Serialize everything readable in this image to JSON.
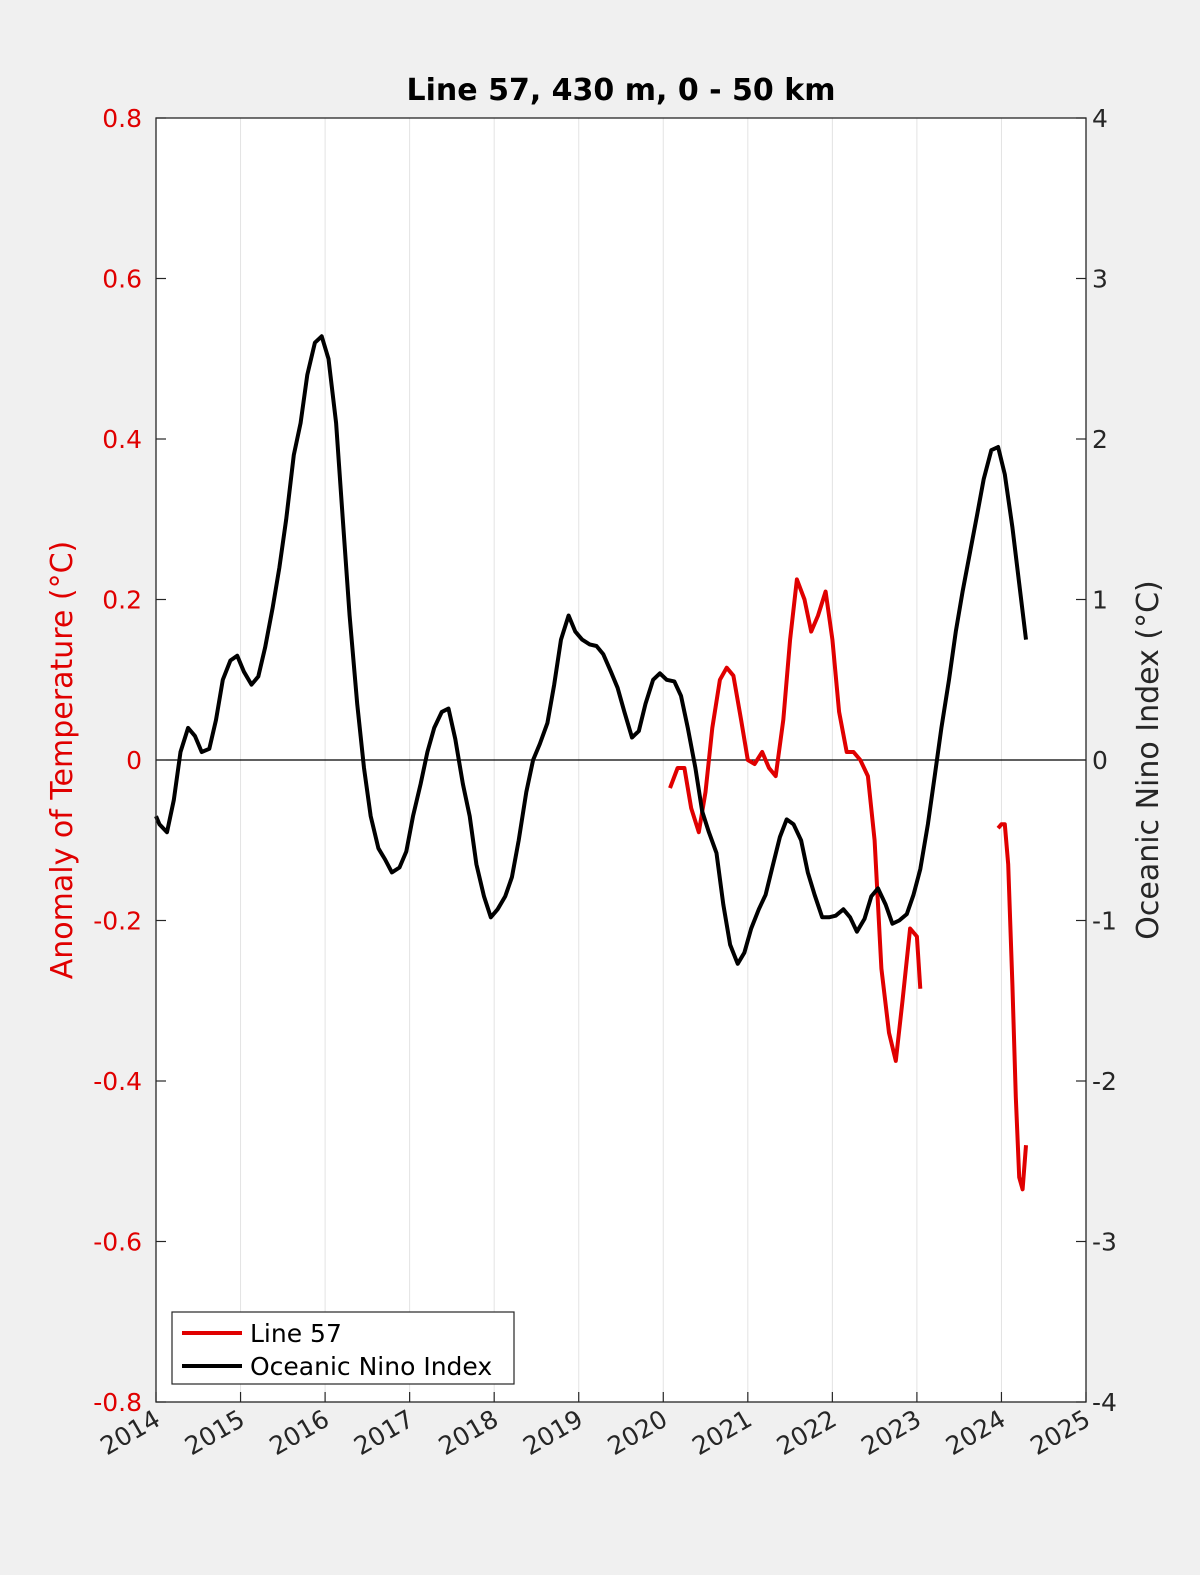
{
  "chart_data": {
    "type": "line",
    "title": "Line 57, 430 m, 0 - 50 km",
    "xlabel": "",
    "ylabel_left": "Anomaly of Temperature (°C)",
    "ylabel_right": "Oceanic Nino Index (°C)",
    "xlim": [
      2014,
      2025
    ],
    "ylim_left": [
      -0.8,
      0.8
    ],
    "ylim_right": [
      -4,
      4
    ],
    "x_ticks": [
      "2014",
      "2015",
      "2016",
      "2017",
      "2018",
      "2019",
      "2020",
      "2021",
      "2022",
      "2023",
      "2024",
      "2025"
    ],
    "y_ticks_left": [
      "-0.8",
      "-0.6",
      "-0.4",
      "-0.2",
      "0",
      "0.2",
      "0.4",
      "0.6",
      "0.8"
    ],
    "y_ticks_right": [
      "-4",
      "-3",
      "-2",
      "-1",
      "0",
      "1",
      "2",
      "3",
      "4"
    ],
    "grid": "vertical",
    "zero_line": true,
    "legend_position": "bottom-left",
    "series": [
      {
        "name": "Line 57",
        "axis": "left",
        "color": "#e00000",
        "segments": [
          [
            [
              2020.08,
              -0.035
            ],
            [
              2020.17,
              -0.01
            ],
            [
              2020.25,
              -0.01
            ],
            [
              2020.33,
              -0.06
            ],
            [
              2020.42,
              -0.09
            ],
            [
              2020.5,
              -0.04
            ],
            [
              2020.58,
              0.04
            ],
            [
              2020.67,
              0.1
            ],
            [
              2020.75,
              0.115
            ],
            [
              2020.83,
              0.105
            ],
            [
              2020.92,
              0.05
            ],
            [
              2021.0,
              0.0
            ],
            [
              2021.08,
              -0.005
            ],
            [
              2021.17,
              0.01
            ],
            [
              2021.25,
              -0.01
            ],
            [
              2021.33,
              -0.02
            ],
            [
              2021.42,
              0.05
            ],
            [
              2021.5,
              0.15
            ],
            [
              2021.58,
              0.225
            ],
            [
              2021.67,
              0.2
            ],
            [
              2021.75,
              0.16
            ],
            [
              2021.83,
              0.18
            ],
            [
              2021.92,
              0.21
            ],
            [
              2022.0,
              0.15
            ],
            [
              2022.08,
              0.06
            ],
            [
              2022.17,
              0.01
            ],
            [
              2022.25,
              0.01
            ],
            [
              2022.33,
              0.0
            ],
            [
              2022.42,
              -0.02
            ],
            [
              2022.5,
              -0.1
            ],
            [
              2022.58,
              -0.26
            ],
            [
              2022.67,
              -0.34
            ],
            [
              2022.75,
              -0.375
            ],
            [
              2022.83,
              -0.3
            ],
            [
              2022.92,
              -0.21
            ],
            [
              2023.0,
              -0.22
            ],
            [
              2023.04,
              -0.285
            ]
          ],
          [
            [
              2023.96,
              -0.085
            ],
            [
              2024.0,
              -0.08
            ],
            [
              2024.04,
              -0.08
            ],
            [
              2024.08,
              -0.13
            ],
            [
              2024.13,
              -0.28
            ],
            [
              2024.17,
              -0.42
            ],
            [
              2024.21,
              -0.52
            ],
            [
              2024.25,
              -0.535
            ],
            [
              2024.29,
              -0.48
            ]
          ]
        ]
      },
      {
        "name": "Oceanic Nino Index",
        "axis": "right",
        "color": "#000000",
        "segments": [
          [
            [
              2014.0,
              -0.35
            ],
            [
              2014.04,
              -0.4
            ],
            [
              2014.13,
              -0.45
            ],
            [
              2014.21,
              -0.25
            ],
            [
              2014.29,
              0.05
            ],
            [
              2014.38,
              0.2
            ],
            [
              2014.46,
              0.15
            ],
            [
              2014.54,
              0.05
            ],
            [
              2014.63,
              0.07
            ],
            [
              2014.71,
              0.25
            ],
            [
              2014.79,
              0.5
            ],
            [
              2014.88,
              0.62
            ],
            [
              2014.96,
              0.65
            ],
            [
              2015.04,
              0.55
            ],
            [
              2015.13,
              0.47
            ],
            [
              2015.21,
              0.52
            ],
            [
              2015.29,
              0.7
            ],
            [
              2015.38,
              0.95
            ],
            [
              2015.46,
              1.2
            ],
            [
              2015.54,
              1.5
            ],
            [
              2015.63,
              1.9
            ],
            [
              2015.71,
              2.1
            ],
            [
              2015.79,
              2.4
            ],
            [
              2015.88,
              2.6
            ],
            [
              2015.96,
              2.64
            ],
            [
              2016.04,
              2.5
            ],
            [
              2016.13,
              2.1
            ],
            [
              2016.21,
              1.5
            ],
            [
              2016.29,
              0.9
            ],
            [
              2016.38,
              0.35
            ],
            [
              2016.46,
              -0.05
            ],
            [
              2016.54,
              -0.35
            ],
            [
              2016.63,
              -0.55
            ],
            [
              2016.71,
              -0.62
            ],
            [
              2016.79,
              -0.7
            ],
            [
              2016.88,
              -0.67
            ],
            [
              2016.96,
              -0.57
            ],
            [
              2017.04,
              -0.35
            ],
            [
              2017.13,
              -0.15
            ],
            [
              2017.21,
              0.05
            ],
            [
              2017.29,
              0.2
            ],
            [
              2017.38,
              0.3
            ],
            [
              2017.46,
              0.32
            ],
            [
              2017.54,
              0.13
            ],
            [
              2017.63,
              -0.15
            ],
            [
              2017.71,
              -0.35
            ],
            [
              2017.79,
              -0.65
            ],
            [
              2017.88,
              -0.85
            ],
            [
              2017.96,
              -0.98
            ],
            [
              2018.04,
              -0.93
            ],
            [
              2018.13,
              -0.85
            ],
            [
              2018.21,
              -0.73
            ],
            [
              2018.29,
              -0.5
            ],
            [
              2018.38,
              -0.2
            ],
            [
              2018.46,
              0.0
            ],
            [
              2018.54,
              0.1
            ],
            [
              2018.63,
              0.23
            ],
            [
              2018.71,
              0.47
            ],
            [
              2018.79,
              0.75
            ],
            [
              2018.88,
              0.9
            ],
            [
              2018.96,
              0.8
            ],
            [
              2019.04,
              0.75
            ],
            [
              2019.13,
              0.72
            ],
            [
              2019.21,
              0.71
            ],
            [
              2019.29,
              0.66
            ],
            [
              2019.38,
              0.55
            ],
            [
              2019.46,
              0.45
            ],
            [
              2019.54,
              0.3
            ],
            [
              2019.63,
              0.14
            ],
            [
              2019.71,
              0.18
            ],
            [
              2019.79,
              0.35
            ],
            [
              2019.88,
              0.5
            ],
            [
              2019.96,
              0.54
            ],
            [
              2020.04,
              0.5
            ],
            [
              2020.13,
              0.49
            ],
            [
              2020.21,
              0.4
            ],
            [
              2020.29,
              0.2
            ],
            [
              2020.38,
              -0.05
            ],
            [
              2020.46,
              -0.32
            ],
            [
              2020.54,
              -0.45
            ],
            [
              2020.63,
              -0.58
            ],
            [
              2020.71,
              -0.9
            ],
            [
              2020.79,
              -1.15
            ],
            [
              2020.88,
              -1.27
            ],
            [
              2020.96,
              -1.2
            ],
            [
              2021.04,
              -1.05
            ],
            [
              2021.13,
              -0.93
            ],
            [
              2021.21,
              -0.84
            ],
            [
              2021.29,
              -0.67
            ],
            [
              2021.38,
              -0.48
            ],
            [
              2021.46,
              -0.37
            ],
            [
              2021.54,
              -0.4
            ],
            [
              2021.63,
              -0.5
            ],
            [
              2021.71,
              -0.7
            ],
            [
              2021.79,
              -0.84
            ],
            [
              2021.88,
              -0.98
            ],
            [
              2021.96,
              -0.98
            ],
            [
              2022.04,
              -0.97
            ],
            [
              2022.13,
              -0.93
            ],
            [
              2022.21,
              -0.98
            ],
            [
              2022.29,
              -1.07
            ],
            [
              2022.38,
              -0.99
            ],
            [
              2022.46,
              -0.85
            ],
            [
              2022.54,
              -0.8
            ],
            [
              2022.63,
              -0.9
            ],
            [
              2022.71,
              -1.02
            ],
            [
              2022.79,
              -1.0
            ],
            [
              2022.88,
              -0.96
            ],
            [
              2022.96,
              -0.84
            ],
            [
              2023.04,
              -0.68
            ],
            [
              2023.13,
              -0.4
            ],
            [
              2023.21,
              -0.1
            ],
            [
              2023.29,
              0.2
            ],
            [
              2023.38,
              0.5
            ],
            [
              2023.46,
              0.8
            ],
            [
              2023.54,
              1.05
            ],
            [
              2023.63,
              1.3
            ],
            [
              2023.71,
              1.52
            ],
            [
              2023.79,
              1.75
            ],
            [
              2023.88,
              1.93
            ],
            [
              2023.96,
              1.95
            ],
            [
              2024.04,
              1.78
            ],
            [
              2024.13,
              1.45
            ],
            [
              2024.21,
              1.1
            ],
            [
              2024.29,
              0.75
            ]
          ]
        ]
      }
    ]
  }
}
